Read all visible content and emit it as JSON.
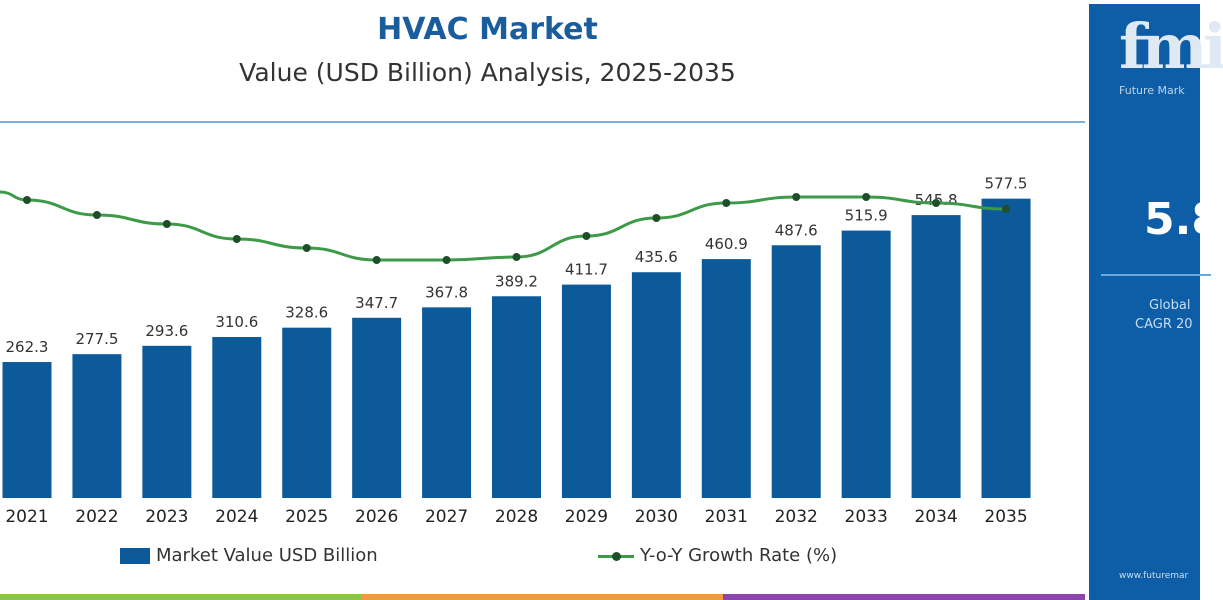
{
  "chart_data": {
    "type": "bar",
    "title": "HVAC Market",
    "subtitle": "Value (USD Billion) Analysis, 2025-2035",
    "categories": [
      "2021",
      "2022",
      "2023",
      "2024",
      "2025",
      "2026",
      "2027",
      "2028",
      "2029",
      "2030",
      "2031",
      "2032",
      "2033",
      "2034",
      "2035"
    ],
    "series": [
      {
        "name": "Market Value USD Billion",
        "type": "bar",
        "color": "#0d5a9a",
        "values": [
          262.3,
          277.5,
          293.6,
          310.6,
          328.6,
          347.7,
          367.8,
          389.2,
          411.7,
          435.6,
          460.9,
          487.6,
          515.9,
          545.8,
          577.5
        ],
        "labels": [
          "262.3",
          "277.5",
          "293.6",
          "310.6",
          "328.6",
          "347.7",
          "367.8",
          "389.2",
          "411.7",
          "435.6",
          "460.9",
          "487.6",
          "515.9",
          "545.8",
          "577.5"
        ]
      },
      {
        "name": "Y-o-Y Growth Rate (%)",
        "type": "line",
        "color": "#3d9a48",
        "marker_color": "#1f4f2a",
        "values": [
          5.9,
          5.85,
          5.82,
          5.77,
          5.74,
          5.7,
          5.7,
          5.71,
          5.78,
          5.84,
          5.89,
          5.91,
          5.91,
          5.89,
          5.87
        ]
      }
    ],
    "ylim": [
      0,
      600
    ],
    "grid": false,
    "legend": "bottom"
  },
  "panel": {
    "logo": "fmi",
    "logo_sub": "Future Mark",
    "cagr": "5.8",
    "label1": "Global",
    "label2": "CAGR 20",
    "url": "www.futuremar"
  },
  "colors": {
    "panel": "#0d5ea6",
    "title": "#1a5d9c",
    "strip": [
      "#8cc63f",
      "#f29b38",
      "#8e44ad"
    ]
  }
}
